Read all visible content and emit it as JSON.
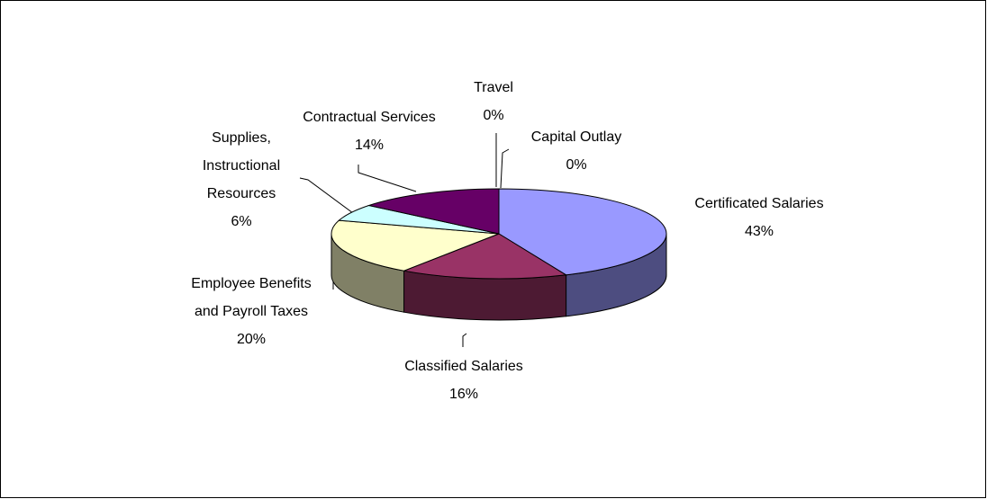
{
  "chart_data": {
    "type": "pie",
    "categories": [
      "Certificated Salaries",
      "Classified Salaries",
      "Employee Benefits and Payroll Taxes",
      "Supplies, Instructional Resources",
      "Contractual Services",
      "Travel",
      "Capital Outlay"
    ],
    "values": [
      43,
      16,
      20,
      6,
      14,
      0,
      0
    ],
    "value_labels": [
      "43%",
      "16%",
      "20%",
      "6%",
      "14%",
      "0%",
      "0%"
    ],
    "colors": [
      "#9999ff",
      "#993366",
      "#ffffcc",
      "#ccffff",
      "#660066",
      "#ff8080",
      "#0066cc"
    ]
  }
}
